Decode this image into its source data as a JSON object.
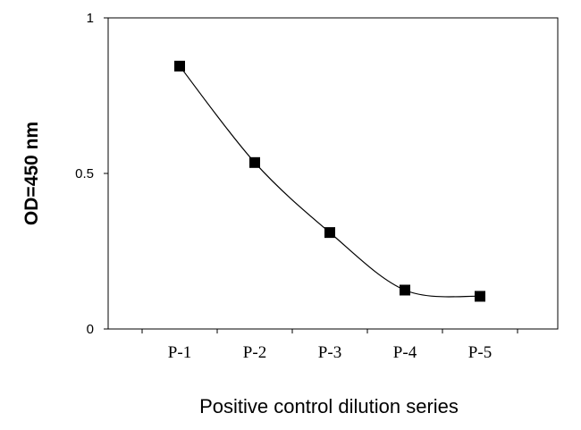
{
  "chart_data": {
    "type": "line",
    "categories": [
      "P-1",
      "P-2",
      "P-3",
      "P-4",
      "P-5"
    ],
    "series": [
      {
        "values": [
          0.845,
          0.535,
          0.31,
          0.125,
          0.105
        ]
      }
    ],
    "xlabel": "Positive control dilution series",
    "ylabel": "OD=450 nm",
    "ylim": [
      0,
      1
    ],
    "yticks": [
      0,
      0.5,
      1
    ],
    "ytick_labels": [
      "0",
      "0.5",
      "1"
    ],
    "grid": false,
    "marker": "square",
    "line_style": "smooth",
    "colors": {
      "line": "#000000",
      "marker": "#000000",
      "axis": "#000000"
    }
  }
}
